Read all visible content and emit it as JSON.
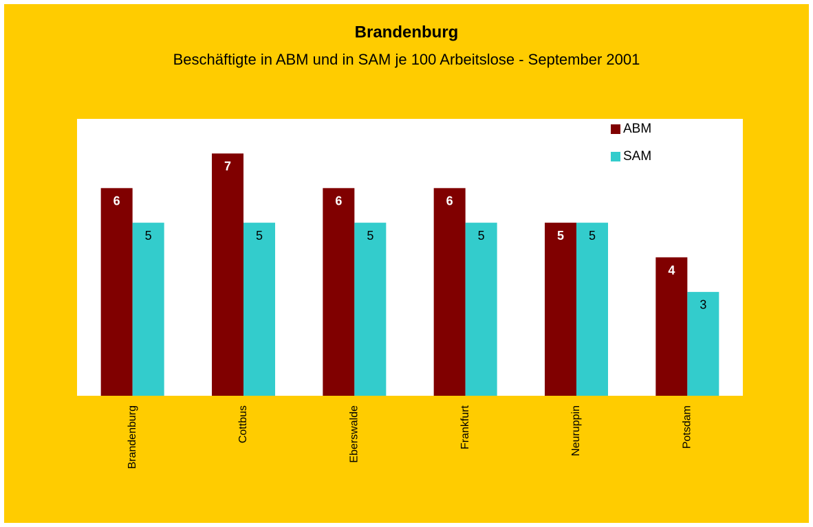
{
  "chart_data": {
    "type": "bar",
    "title": "Brandenburg",
    "subtitle": "Beschäftigte in ABM und in SAM je 100 Arbeitslose  - September 2001",
    "categories": [
      "Brandenburg",
      "Cottbus",
      "Eberswalde",
      "Frankfurt",
      "Neuruppin",
      "Potsdam"
    ],
    "series": [
      {
        "name": "ABM",
        "color": "#800000",
        "values": [
          6,
          7,
          6,
          6,
          5,
          4
        ]
      },
      {
        "name": "SAM",
        "color": "#33cccc",
        "values": [
          5,
          5,
          5,
          5,
          5,
          3
        ]
      }
    ],
    "ylim": [
      0,
      8
    ],
    "legend": "top-right"
  }
}
